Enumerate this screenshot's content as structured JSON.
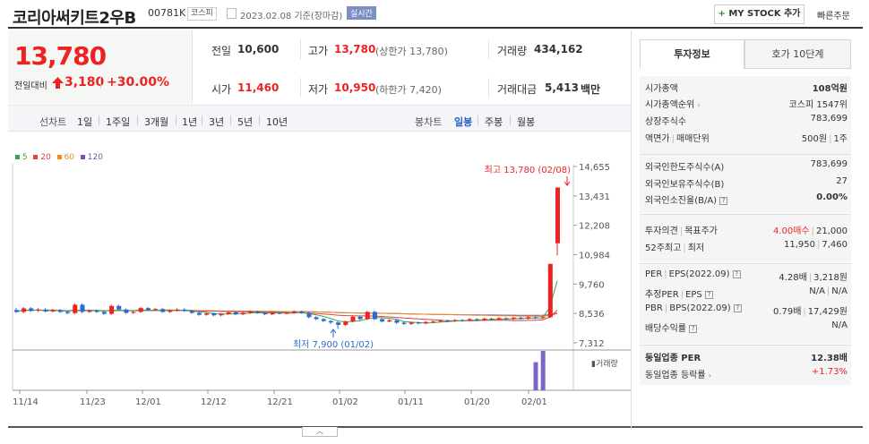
{
  "header": {
    "title": "코리아써키트2우B",
    "code": "00781K",
    "market": "코스피",
    "date": "2023.02.08 기준(장마감)",
    "realtime": "실시간",
    "mystock_plus": "+",
    "mystock_label": " MY STOCK 추가",
    "quick_order": "빠른주문"
  },
  "price": {
    "current": "13,780",
    "change_label": "전일대비",
    "change": "3,180",
    "change_pct": "+30.00%"
  },
  "stats": {
    "prev_close_label": "전일",
    "prev_close": "10,600",
    "high_label": "고가",
    "high": "13,780",
    "upper_limit": "(상한가 13,780)",
    "volume_label": "거래량",
    "volume": "434,162",
    "open_label": "시가",
    "open": "11,460",
    "low_label": "저가",
    "low": "10,950",
    "lower_limit": "(하한가 7,420)",
    "amount_label": "거래대금",
    "amount": "5,413",
    "amount_unit": "백만"
  },
  "period": {
    "line_label": "선차트",
    "line_items": [
      "1일",
      "1주일",
      "3개월",
      "1년",
      "3년",
      "5년",
      "10년"
    ],
    "candle_label": "봉차트",
    "candle_items": [
      "일봉",
      "주봉",
      "월봉"
    ],
    "active": "일봉"
  },
  "legend": {
    "items": [
      {
        "label": "5",
        "color": "#3aa64a"
      },
      {
        "label": "20",
        "color": "#e04040"
      },
      {
        "label": "60",
        "color": "#f08a1c"
      },
      {
        "label": "120",
        "color": "#7a4fb0"
      }
    ]
  },
  "chart_data": {
    "type": "candlestick",
    "y_ticks": [
      "14,655",
      "13,431",
      "12,208",
      "10,984",
      "9,760",
      "8,536",
      "7,312"
    ],
    "ylim": [
      7312,
      14655
    ],
    "x_ticks": [
      "11/14",
      "11/23",
      "12/01",
      "12/12",
      "12/21",
      "01/02",
      "01/11",
      "01/20",
      "02/01"
    ],
    "high_annotation": "최고 13,780 (02/08)",
    "low_annotation": "최저 7,900 (01/02)",
    "volume_label": "거래량",
    "candles": [
      {
        "o": 8680,
        "c": 8600,
        "h": 8760,
        "l": 8560
      },
      {
        "o": 8600,
        "c": 8750,
        "h": 8800,
        "l": 8550
      },
      {
        "o": 8750,
        "c": 8650,
        "h": 8800,
        "l": 8600
      },
      {
        "o": 8650,
        "c": 8700,
        "h": 8750,
        "l": 8600
      },
      {
        "o": 8700,
        "c": 8620,
        "h": 8760,
        "l": 8580
      },
      {
        "o": 8620,
        "c": 8680,
        "h": 8720,
        "l": 8580
      },
      {
        "o": 8680,
        "c": 8600,
        "h": 8720,
        "l": 8560
      },
      {
        "o": 8600,
        "c": 8550,
        "h": 8650,
        "l": 8500
      },
      {
        "o": 8550,
        "c": 8900,
        "h": 8950,
        "l": 8500
      },
      {
        "o": 8900,
        "c": 8600,
        "h": 8950,
        "l": 8550
      },
      {
        "o": 8600,
        "c": 8650,
        "h": 8700,
        "l": 8560
      },
      {
        "o": 8650,
        "c": 8600,
        "h": 8700,
        "l": 8560
      },
      {
        "o": 8600,
        "c": 8520,
        "h": 8650,
        "l": 8480
      },
      {
        "o": 8520,
        "c": 8850,
        "h": 8900,
        "l": 8480
      },
      {
        "o": 8850,
        "c": 8700,
        "h": 8900,
        "l": 8650
      },
      {
        "o": 8700,
        "c": 8560,
        "h": 8750,
        "l": 8520
      },
      {
        "o": 8560,
        "c": 8600,
        "h": 8650,
        "l": 8520
      },
      {
        "o": 8600,
        "c": 8760,
        "h": 8800,
        "l": 8560
      },
      {
        "o": 8760,
        "c": 8680,
        "h": 8800,
        "l": 8640
      },
      {
        "o": 8680,
        "c": 8720,
        "h": 8760,
        "l": 8640
      },
      {
        "o": 8720,
        "c": 8600,
        "h": 8760,
        "l": 8560
      },
      {
        "o": 8600,
        "c": 8650,
        "h": 8700,
        "l": 8560
      },
      {
        "o": 8650,
        "c": 8700,
        "h": 8750,
        "l": 8620
      },
      {
        "o": 8700,
        "c": 8640,
        "h": 8750,
        "l": 8600
      },
      {
        "o": 8640,
        "c": 8560,
        "h": 8700,
        "l": 8520
      },
      {
        "o": 8560,
        "c": 8480,
        "h": 8600,
        "l": 8440
      },
      {
        "o": 8480,
        "c": 8540,
        "h": 8580,
        "l": 8440
      },
      {
        "o": 8540,
        "c": 8460,
        "h": 8580,
        "l": 8420
      },
      {
        "o": 8460,
        "c": 8520,
        "h": 8560,
        "l": 8420
      },
      {
        "o": 8520,
        "c": 8580,
        "h": 8620,
        "l": 8480
      },
      {
        "o": 8580,
        "c": 8500,
        "h": 8620,
        "l": 8460
      },
      {
        "o": 8500,
        "c": 8560,
        "h": 8600,
        "l": 8460
      },
      {
        "o": 8560,
        "c": 8620,
        "h": 8660,
        "l": 8520
      },
      {
        "o": 8620,
        "c": 8560,
        "h": 8660,
        "l": 8520
      },
      {
        "o": 8560,
        "c": 8500,
        "h": 8600,
        "l": 8460
      },
      {
        "o": 8500,
        "c": 8560,
        "h": 8600,
        "l": 8460
      },
      {
        "o": 8560,
        "c": 8540,
        "h": 8600,
        "l": 8500
      },
      {
        "o": 8540,
        "c": 8560,
        "h": 8600,
        "l": 8500
      },
      {
        "o": 8560,
        "c": 8620,
        "h": 8660,
        "l": 8520
      },
      {
        "o": 8620,
        "c": 8560,
        "h": 8660,
        "l": 8520
      },
      {
        "o": 8560,
        "c": 8380,
        "h": 8600,
        "l": 8340
      },
      {
        "o": 8380,
        "c": 8300,
        "h": 8420,
        "l": 8260
      },
      {
        "o": 8300,
        "c": 8220,
        "h": 8340,
        "l": 8180
      },
      {
        "o": 8220,
        "c": 8160,
        "h": 8260,
        "l": 8100
      },
      {
        "o": 8160,
        "c": 8060,
        "h": 8200,
        "l": 7900
      },
      {
        "o": 8060,
        "c": 8200,
        "h": 8240,
        "l": 8020
      },
      {
        "o": 8200,
        "c": 8400,
        "h": 8440,
        "l": 8160
      },
      {
        "o": 8400,
        "c": 8300,
        "h": 8440,
        "l": 8260
      },
      {
        "o": 8300,
        "c": 8600,
        "h": 8650,
        "l": 8260
      },
      {
        "o": 8600,
        "c": 8300,
        "h": 8650,
        "l": 8260
      },
      {
        "o": 8300,
        "c": 8200,
        "h": 8340,
        "l": 8160
      },
      {
        "o": 8200,
        "c": 8250,
        "h": 8300,
        "l": 8160
      },
      {
        "o": 8250,
        "c": 8150,
        "h": 8300,
        "l": 8100
      },
      {
        "o": 8150,
        "c": 8100,
        "h": 8200,
        "l": 8060
      },
      {
        "o": 8100,
        "c": 8160,
        "h": 8200,
        "l": 8060
      },
      {
        "o": 8160,
        "c": 8120,
        "h": 8200,
        "l": 8080
      },
      {
        "o": 8120,
        "c": 8180,
        "h": 8220,
        "l": 8080
      },
      {
        "o": 8180,
        "c": 8200,
        "h": 8240,
        "l": 8140
      },
      {
        "o": 8200,
        "c": 8240,
        "h": 8280,
        "l": 8160
      },
      {
        "o": 8240,
        "c": 8220,
        "h": 8280,
        "l": 8180
      },
      {
        "o": 8220,
        "c": 8260,
        "h": 8300,
        "l": 8180
      },
      {
        "o": 8260,
        "c": 8240,
        "h": 8300,
        "l": 8200
      },
      {
        "o": 8240,
        "c": 8300,
        "h": 8340,
        "l": 8200
      },
      {
        "o": 8300,
        "c": 8260,
        "h": 8340,
        "l": 8220
      },
      {
        "o": 8260,
        "c": 8320,
        "h": 8360,
        "l": 8220
      },
      {
        "o": 8320,
        "c": 8280,
        "h": 8360,
        "l": 8240
      },
      {
        "o": 8280,
        "c": 8340,
        "h": 8380,
        "l": 8240
      },
      {
        "o": 8340,
        "c": 8300,
        "h": 8380,
        "l": 8260
      },
      {
        "o": 8300,
        "c": 8360,
        "h": 8400,
        "l": 8260
      },
      {
        "o": 8360,
        "c": 8320,
        "h": 8400,
        "l": 8280
      },
      {
        "o": 8320,
        "c": 8380,
        "h": 8420,
        "l": 8280
      },
      {
        "o": 8380,
        "c": 8340,
        "h": 8420,
        "l": 8300
      },
      {
        "o": 8340,
        "c": 8380,
        "h": 8420,
        "l": 8300
      },
      {
        "o": 8380,
        "c": 10600,
        "h": 10600,
        "l": 8340
      },
      {
        "o": 11460,
        "c": 13780,
        "h": 13780,
        "l": 10950
      }
    ],
    "volumes": [
      0,
      0,
      0,
      0,
      0,
      0,
      0,
      0,
      0,
      0,
      0,
      0,
      0,
      0,
      0,
      0,
      0,
      0,
      0,
      0,
      0,
      0,
      0,
      0,
      0,
      0,
      0,
      0,
      0,
      0,
      0,
      0,
      0,
      0,
      0,
      0,
      0,
      0,
      0,
      0,
      0,
      0,
      0,
      0,
      0,
      0,
      0,
      0,
      0,
      0,
      0,
      0,
      0,
      0,
      0,
      0,
      0,
      0,
      0,
      0,
      0,
      0,
      0,
      0,
      0,
      0,
      0,
      0,
      0,
      0,
      0,
      310000,
      434162
    ]
  },
  "right_panel": {
    "tab_invest": "투자정보",
    "tab_hoga": "호가 10단계",
    "rows1": [
      {
        "label": "시가총액",
        "value": "108억원"
      },
      {
        "label": "시가총액순위",
        "value": "코스피 1547위"
      },
      {
        "label": "상장주식수",
        "value": "783,699"
      },
      {
        "label": "액면가",
        "label2": "매매단위",
        "value": "500원",
        "value2": "1주"
      }
    ],
    "rows2": [
      {
        "label": "외국인한도주식수(A)",
        "value": "783,699"
      },
      {
        "label": "외국인보유주식수(B)",
        "value": "27"
      },
      {
        "label": "외국인소진율(B/A)",
        "value": "0.00%"
      }
    ],
    "rows3": [
      {
        "label": "투자의견",
        "label2": "목표주가",
        "value": "4.00매수",
        "value2": "21,000"
      },
      {
        "label": "52주최고",
        "label2": "최저",
        "value": "11,950",
        "value2": "7,460"
      }
    ],
    "rows4": [
      {
        "label": "PER",
        "label2": "EPS(2022.09)",
        "value": "4.28배",
        "value2": "3,218원"
      },
      {
        "label": "추정PER",
        "label2": "EPS",
        "value": "N/A",
        "value2": "N/A"
      },
      {
        "label": "PBR",
        "label2": "BPS(2022.09)",
        "value": "0.79배",
        "value2": "17,429원"
      },
      {
        "label": "배당수익률",
        "value": "N/A"
      }
    ],
    "rows5": [
      {
        "label": "동일업종 PER",
        "value": "12.38배"
      },
      {
        "label": "동일업종 등락률",
        "value": "+1.73%"
      }
    ]
  }
}
